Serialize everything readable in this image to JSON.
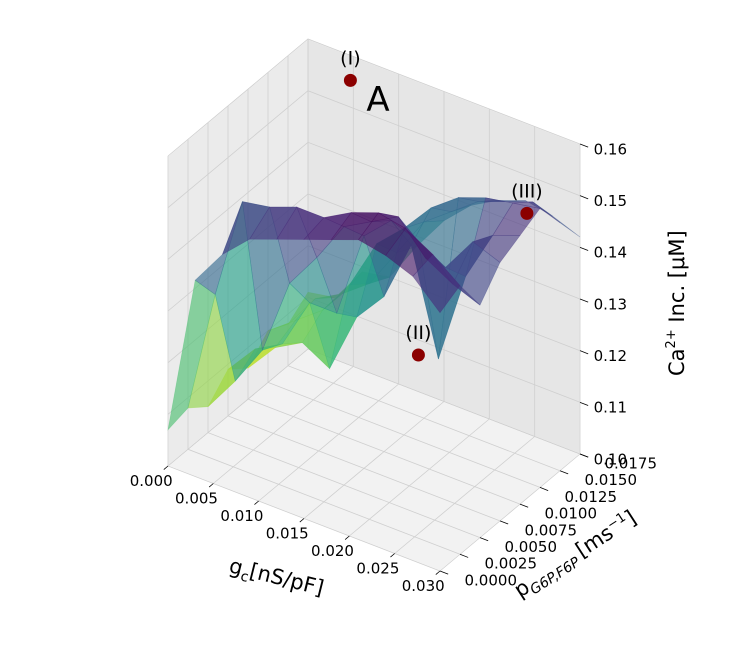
{
  "chart_data": {
    "type": "surface",
    "title": "A",
    "xlabel": "g",
    "xlabel_sub": "c",
    "xlabel_unit": "[nS/pF]",
    "ylabel": "p",
    "ylabel_sub": "G6P,F6P",
    "ylabel_unit": "[ms",
    "ylabel_unit_sup": "−1",
    "ylabel_unit_close": "]",
    "zlabel": "Ca",
    "zlabel_sup": "2+",
    "zlabel_rest": " Inc. [μM]",
    "xlim": [
      0,
      0.03
    ],
    "ylim": [
      0,
      0.0175
    ],
    "zlim": [
      0.1,
      0.16
    ],
    "x_ticks": [
      "0.000",
      "0.005",
      "0.010",
      "0.015",
      "0.020",
      "0.025",
      "0.030"
    ],
    "y_ticks": [
      "0.0000",
      "0.0025",
      "0.0050",
      "0.0075",
      "0.0100",
      "0.0125",
      "0.0150",
      "0.0175"
    ],
    "z_ticks": [
      "0.10",
      "0.11",
      "0.12",
      "0.13",
      "0.14",
      "0.15",
      "0.16"
    ],
    "colormap": "viridis",
    "grid": true,
    "x_grid": [
      0,
      0.003,
      0.006,
      0.009,
      0.012,
      0.015,
      0.018,
      0.021,
      0.024,
      0.027,
      0.03
    ],
    "y_grid": [
      0,
      0.0025,
      0.005,
      0.0075,
      0.01,
      0.0125,
      0.015,
      0.0175
    ],
    "z_values": [
      [
        0.107,
        0.108,
        0.105,
        0.109,
        0.106,
        0.11,
        0.108,
        0.111
      ],
      [
        0.138,
        0.132,
        0.112,
        0.115,
        0.112,
        0.114,
        0.115,
        0.112
      ],
      [
        0.145,
        0.152,
        0.12,
        0.118,
        0.115,
        0.118,
        0.118,
        0.119
      ],
      [
        0.15,
        0.153,
        0.135,
        0.128,
        0.112,
        0.125,
        0.122,
        0.12
      ],
      [
        0.152,
        0.155,
        0.142,
        0.128,
        0.124,
        0.135,
        0.13,
        0.128
      ],
      [
        0.154,
        0.155,
        0.15,
        0.145,
        0.13,
        0.14,
        0.138,
        0.135
      ],
      [
        0.156,
        0.158,
        0.153,
        0.15,
        0.142,
        0.146,
        0.142,
        0.14
      ],
      [
        0.158,
        0.16,
        0.156,
        0.148,
        0.122,
        0.15,
        0.146,
        0.143
      ],
      [
        0.157,
        0.159,
        0.15,
        0.145,
        0.14,
        0.152,
        0.148,
        0.145
      ],
      [
        0.155,
        0.156,
        0.147,
        0.152,
        0.15,
        0.153,
        0.15,
        0.144
      ],
      [
        0.15,
        0.152,
        0.145,
        0.15,
        0.152,
        0.154,
        0.148,
        0.142
      ]
    ],
    "annotations": [
      {
        "label": "(I)",
        "x": 0.006,
        "y": 0.016,
        "z": 0.158
      },
      {
        "label": "(II)",
        "x": 0.021,
        "y": 0.0075,
        "z": 0.126
      },
      {
        "label": "(III)",
        "x": 0.029,
        "y": 0.012,
        "z": 0.153
      }
    ],
    "marker_color": "#8b0000"
  }
}
